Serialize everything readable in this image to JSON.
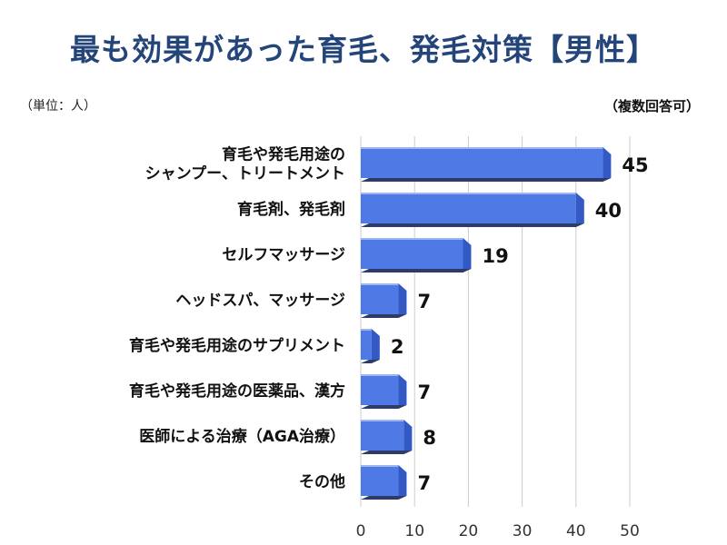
{
  "chart_data": {
    "type": "bar",
    "orientation": "horizontal",
    "title": "最も効果があった育毛、発毛対策【男性】",
    "unit_note": "（単位：人）",
    "multi_note": "（複数回答可）",
    "categories": [
      [
        "育毛や発毛用途の",
        "シャンプー、トリートメント"
      ],
      [
        "育毛剤、発毛剤"
      ],
      [
        "セルフマッサージ"
      ],
      [
        "ヘッドスパ、マッサージ"
      ],
      [
        "育毛や発毛用途のサプリメント"
      ],
      [
        "育毛や発毛用途の医薬品、漢方"
      ],
      [
        "医師による治療（AGA治療）"
      ],
      [
        "その他"
      ]
    ],
    "values": [
      45,
      40,
      19,
      7,
      2,
      7,
      8,
      7
    ],
    "xlim": [
      0,
      50
    ],
    "xticks": [
      0,
      10,
      20,
      30,
      40,
      50
    ],
    "grid": true,
    "colors": {
      "bar": "#4f7ae6",
      "bar_side": "#3259c4",
      "bar_top": "#9db6f2",
      "bar_shadow": "#2c3c66",
      "grid": "#cccccc",
      "title": "#24457a"
    }
  }
}
